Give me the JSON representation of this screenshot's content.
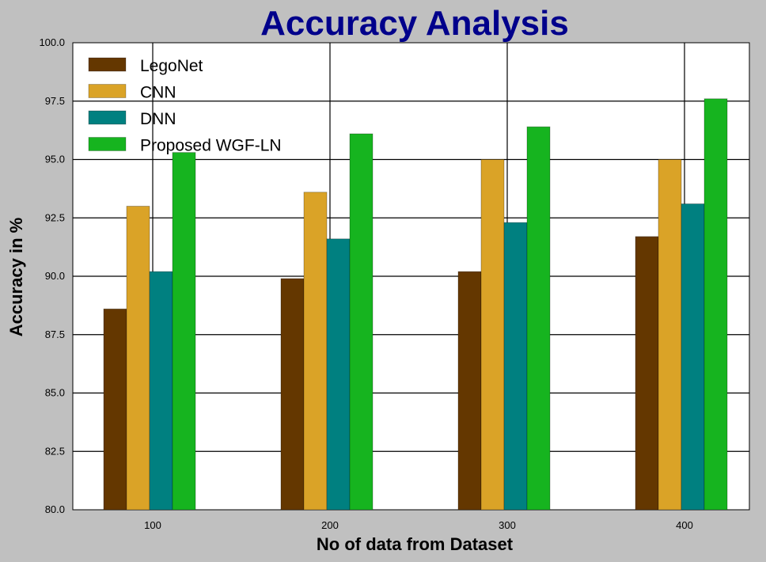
{
  "chart_data": {
    "type": "bar",
    "title": "Accuracy Analysis",
    "xlabel": "No of data from Dataset",
    "ylabel": "Accuracy in %",
    "categories": [
      "100",
      "200",
      "300",
      "400"
    ],
    "ylim": [
      80.0,
      100.0
    ],
    "yticks": [
      "80.0",
      "82.5",
      "85.0",
      "87.5",
      "90.0",
      "92.5",
      "95.0",
      "97.5",
      "100.0"
    ],
    "grid": true,
    "legend_position": "top-left",
    "series": [
      {
        "name": "LegoNet",
        "color": "#643700",
        "values": [
          88.6,
          89.9,
          90.2,
          91.7
        ]
      },
      {
        "name": "CNN",
        "color": "#daa327",
        "values": [
          93.0,
          93.6,
          95.0,
          95.0
        ]
      },
      {
        "name": "DNN",
        "color": "#008080",
        "values": [
          90.2,
          91.6,
          92.3,
          93.1
        ]
      },
      {
        "name": "Proposed WGF-LN",
        "color": "#16b41f",
        "values": [
          95.3,
          96.1,
          96.4,
          97.6
        ]
      }
    ]
  }
}
